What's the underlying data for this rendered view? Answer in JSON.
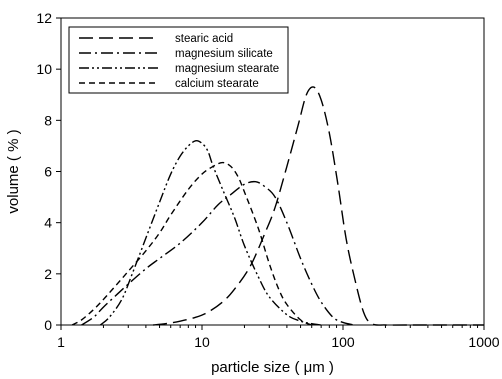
{
  "chart_data": {
    "type": "line",
    "title": "",
    "xlabel": "particle size  ( μm )",
    "ylabel": "volume  ( % )",
    "xscale": "log",
    "xlim": [
      1,
      1000
    ],
    "ylim": [
      0,
      12
    ],
    "xticks": [
      1,
      10,
      100,
      1000
    ],
    "xtick_labels": [
      "1",
      "10",
      "100",
      "1000"
    ],
    "yticks": [
      0,
      2,
      4,
      6,
      8,
      10,
      12
    ],
    "ytick_labels": [
      "0",
      "2",
      "4",
      "6",
      "8",
      "10",
      "12"
    ],
    "grid": false,
    "legend_position": "top-left",
    "series": [
      {
        "name": "stearic acid",
        "dash": "long-dash",
        "color": "#000000",
        "x": [
          4.5,
          5.5,
          7,
          9,
          11,
          14,
          17,
          22,
          28,
          33,
          40,
          48,
          55,
          62,
          70,
          80,
          92,
          105,
          120,
          140,
          160,
          200,
          300,
          500,
          1000
        ],
        "y": [
          0,
          0.05,
          0.15,
          0.3,
          0.5,
          0.9,
          1.4,
          2.3,
          3.6,
          4.6,
          6.2,
          7.8,
          9.0,
          9.3,
          8.8,
          7.5,
          5.5,
          3.4,
          1.9,
          0.5,
          0.05,
          0,
          0,
          0,
          0
        ]
      },
      {
        "name": "magnesium silicate",
        "dash": "dash-dot",
        "color": "#000000",
        "x": [
          1.4,
          1.7,
          2,
          2.5,
          3,
          4,
          5,
          7,
          10,
          13,
          16,
          20,
          24,
          28,
          33,
          40,
          50,
          60,
          70,
          85,
          100,
          120
        ],
        "y": [
          0,
          0.3,
          0.7,
          1.2,
          1.6,
          2.2,
          2.6,
          3.2,
          4.0,
          4.7,
          5.1,
          5.5,
          5.6,
          5.4,
          5.0,
          4.0,
          2.6,
          1.6,
          0.9,
          0.3,
          0.1,
          0
        ]
      },
      {
        "name": "magnesium stearate",
        "dash": "dash-dot-dot",
        "color": "#000000",
        "x": [
          1.9,
          2.2,
          2.7,
          3.2,
          4,
          5,
          6,
          7,
          8,
          9,
          10,
          11,
          12,
          14,
          17,
          20,
          25,
          30,
          40,
          50,
          60,
          70
        ],
        "y": [
          0,
          0.3,
          1.0,
          2.0,
          3.4,
          4.8,
          5.9,
          6.6,
          7.0,
          7.2,
          7.1,
          6.8,
          6.2,
          5.3,
          4.2,
          3.1,
          1.9,
          1.1,
          0.4,
          0.15,
          0.05,
          0
        ]
      },
      {
        "name": "calcium stearate",
        "dash": "short-dash",
        "color": "#000000",
        "x": [
          1.2,
          1.4,
          1.7,
          2,
          2.5,
          3,
          4,
          5,
          6,
          8,
          10,
          12,
          14,
          16,
          18,
          20,
          25,
          30,
          35,
          40,
          50,
          60
        ],
        "y": [
          0,
          0.2,
          0.6,
          1.0,
          1.6,
          2.1,
          2.9,
          3.6,
          4.3,
          5.3,
          5.9,
          6.2,
          6.35,
          6.2,
          5.8,
          5.2,
          3.8,
          2.4,
          1.4,
          0.8,
          0.2,
          0
        ]
      }
    ]
  }
}
